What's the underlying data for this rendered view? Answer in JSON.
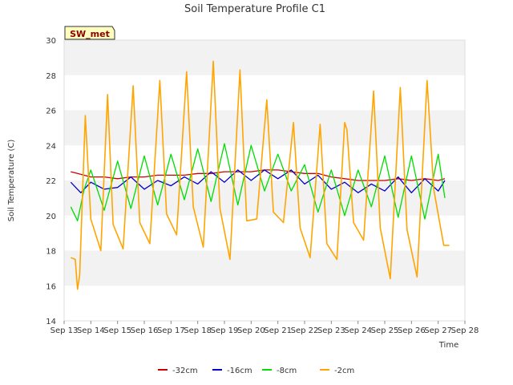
{
  "chart_data": {
    "type": "line",
    "title": "Soil Temperature Profile C1",
    "xlabel": "Time",
    "ylabel": "Soil Temperature (C)",
    "site_badge": "SW_met",
    "x_ticks": [
      "Sep 13",
      "Sep 14",
      "Sep 15",
      "Sep 16",
      "Sep 17",
      "Sep 18",
      "Sep 19",
      "Sep 20",
      "Sep 21",
      "Sep 22",
      "Sep 23",
      "Sep 24",
      "Sep 25",
      "Sep 26",
      "Sep 27",
      "Sep 28"
    ],
    "xlim": [
      0,
      15
    ],
    "ylim": [
      14,
      30
    ],
    "y_ticks": [
      14,
      16,
      18,
      20,
      22,
      24,
      26,
      28,
      30
    ],
    "grid": "horizontal alternating bands",
    "legend_position": "bottom",
    "series": [
      {
        "name": "-32cm",
        "color": "#cc0000",
        "x": [
          "Sep 13 06:00",
          "Sep 13 12:00",
          "Sep 14 00:00",
          "Sep 14 12:00",
          "Sep 15 00:00",
          "Sep 15 12:00",
          "Sep 16 00:00",
          "Sep 16 12:00",
          "Sep 17 00:00",
          "Sep 17 12:00",
          "Sep 18 00:00",
          "Sep 18 12:00",
          "Sep 19 00:00",
          "Sep 19 12:00",
          "Sep 20 00:00",
          "Sep 20 12:00",
          "Sep 21 00:00",
          "Sep 21 12:00",
          "Sep 22 00:00",
          "Sep 22 12:00",
          "Sep 23 00:00",
          "Sep 23 12:00",
          "Sep 24 00:00",
          "Sep 24 12:00",
          "Sep 25 00:00",
          "Sep 25 12:00",
          "Sep 26 00:00",
          "Sep 26 12:00",
          "Sep 27 00:00",
          "Sep 27 06:00"
        ],
        "values": [
          22.5,
          22.4,
          22.2,
          22.2,
          22.1,
          22.2,
          22.2,
          22.3,
          22.3,
          22.3,
          22.4,
          22.4,
          22.5,
          22.5,
          22.5,
          22.6,
          22.6,
          22.5,
          22.4,
          22.4,
          22.2,
          22.1,
          22.0,
          22.0,
          22.0,
          22.1,
          22.0,
          22.1,
          22.0,
          22.1
        ]
      },
      {
        "name": "-16cm",
        "color": "#0000cc",
        "x": [
          "Sep 13 06:00",
          "Sep 13 15:00",
          "Sep 14 00:00",
          "Sep 14 12:00",
          "Sep 15 00:00",
          "Sep 15 12:00",
          "Sep 16 00:00",
          "Sep 16 12:00",
          "Sep 17 00:00",
          "Sep 17 12:00",
          "Sep 18 00:00",
          "Sep 18 12:00",
          "Sep 19 00:00",
          "Sep 19 12:00",
          "Sep 20 00:00",
          "Sep 20 12:00",
          "Sep 21 00:00",
          "Sep 21 12:00",
          "Sep 22 00:00",
          "Sep 22 12:00",
          "Sep 23 00:00",
          "Sep 23 12:00",
          "Sep 24 00:00",
          "Sep 24 12:00",
          "Sep 25 00:00",
          "Sep 25 12:00",
          "Sep 26 00:00",
          "Sep 26 12:00",
          "Sep 27 00:00",
          "Sep 27 06:00"
        ],
        "values": [
          21.9,
          21.3,
          21.9,
          21.5,
          21.6,
          22.2,
          21.5,
          22.0,
          21.7,
          22.2,
          21.8,
          22.5,
          21.9,
          22.6,
          22.0,
          22.6,
          22.1,
          22.6,
          21.8,
          22.3,
          21.5,
          21.9,
          21.3,
          21.8,
          21.4,
          22.2,
          21.3,
          22.1,
          21.4,
          22.0
        ]
      },
      {
        "name": "-8cm",
        "color": "#00dd00",
        "x": [
          "Sep 13 06:00",
          "Sep 13 12:00",
          "Sep 13 18:00",
          "Sep 14 00:00",
          "Sep 14 12:00",
          "Sep 15 00:00",
          "Sep 15 12:00",
          "Sep 16 00:00",
          "Sep 16 12:00",
          "Sep 17 00:00",
          "Sep 17 12:00",
          "Sep 18 00:00",
          "Sep 18 12:00",
          "Sep 19 00:00",
          "Sep 19 12:00",
          "Sep 20 00:00",
          "Sep 20 12:00",
          "Sep 21 00:00",
          "Sep 21 12:00",
          "Sep 22 00:00",
          "Sep 22 12:00",
          "Sep 23 00:00",
          "Sep 23 12:00",
          "Sep 24 00:00",
          "Sep 24 12:00",
          "Sep 25 00:00",
          "Sep 25 12:00",
          "Sep 26 00:00",
          "Sep 26 12:00",
          "Sep 27 00:00",
          "Sep 27 06:00"
        ],
        "values": [
          20.5,
          19.7,
          21.5,
          22.6,
          20.3,
          23.1,
          20.4,
          23.4,
          20.6,
          23.5,
          20.9,
          23.8,
          20.8,
          24.1,
          20.6,
          24.0,
          21.4,
          23.5,
          21.4,
          22.9,
          20.2,
          22.6,
          20.0,
          22.6,
          20.5,
          23.4,
          19.9,
          23.4,
          19.8,
          23.5,
          21.0
        ]
      },
      {
        "name": "-2cm",
        "color": "#ffa500",
        "x": [
          "Sep 13 06:00",
          "Sep 13 10:00",
          "Sep 13 12:00",
          "Sep 13 14:00",
          "Sep 13 19:00",
          "Sep 14 00:00",
          "Sep 14 09:00",
          "Sep 14 15:00",
          "Sep 14 20:00",
          "Sep 15 05:00",
          "Sep 15 14:00",
          "Sep 15 20:00",
          "Sep 16 05:00",
          "Sep 16 14:00",
          "Sep 16 20:00",
          "Sep 17 05:00",
          "Sep 17 14:00",
          "Sep 17 20:00",
          "Sep 18 05:00",
          "Sep 18 14:00",
          "Sep 18 20:00",
          "Sep 19 05:00",
          "Sep 19 14:00",
          "Sep 19 20:00",
          "Sep 20 05:00",
          "Sep 20 14:00",
          "Sep 20 20:00",
          "Sep 21 05:00",
          "Sep 21 14:00",
          "Sep 21 20:00",
          "Sep 22 05:00",
          "Sep 22 14:00",
          "Sep 22 20:00",
          "Sep 23 05:00",
          "Sep 23 12:00",
          "Sep 23 14:00",
          "Sep 23 20:00",
          "Sep 24 05:00",
          "Sep 24 14:00",
          "Sep 24 20:00",
          "Sep 25 05:00",
          "Sep 25 14:00",
          "Sep 25 20:00",
          "Sep 26 05:00",
          "Sep 26 14:00",
          "Sep 26 20:00",
          "Sep 27 05:00",
          "Sep 27 10:00"
        ],
        "values": [
          17.6,
          17.5,
          15.8,
          16.6,
          25.7,
          19.8,
          18.0,
          26.9,
          19.5,
          18.1,
          27.4,
          19.6,
          18.4,
          27.7,
          20.1,
          18.9,
          28.2,
          20.5,
          18.2,
          28.8,
          20.4,
          17.5,
          28.3,
          19.7,
          19.8,
          26.6,
          20.2,
          19.6,
          25.3,
          19.3,
          17.6,
          25.2,
          18.4,
          17.5,
          25.3,
          24.9,
          19.6,
          18.6,
          27.1,
          19.3,
          16.4,
          27.3,
          19.2,
          16.5,
          27.7,
          21.5,
          18.3,
          18.3
        ]
      }
    ]
  }
}
